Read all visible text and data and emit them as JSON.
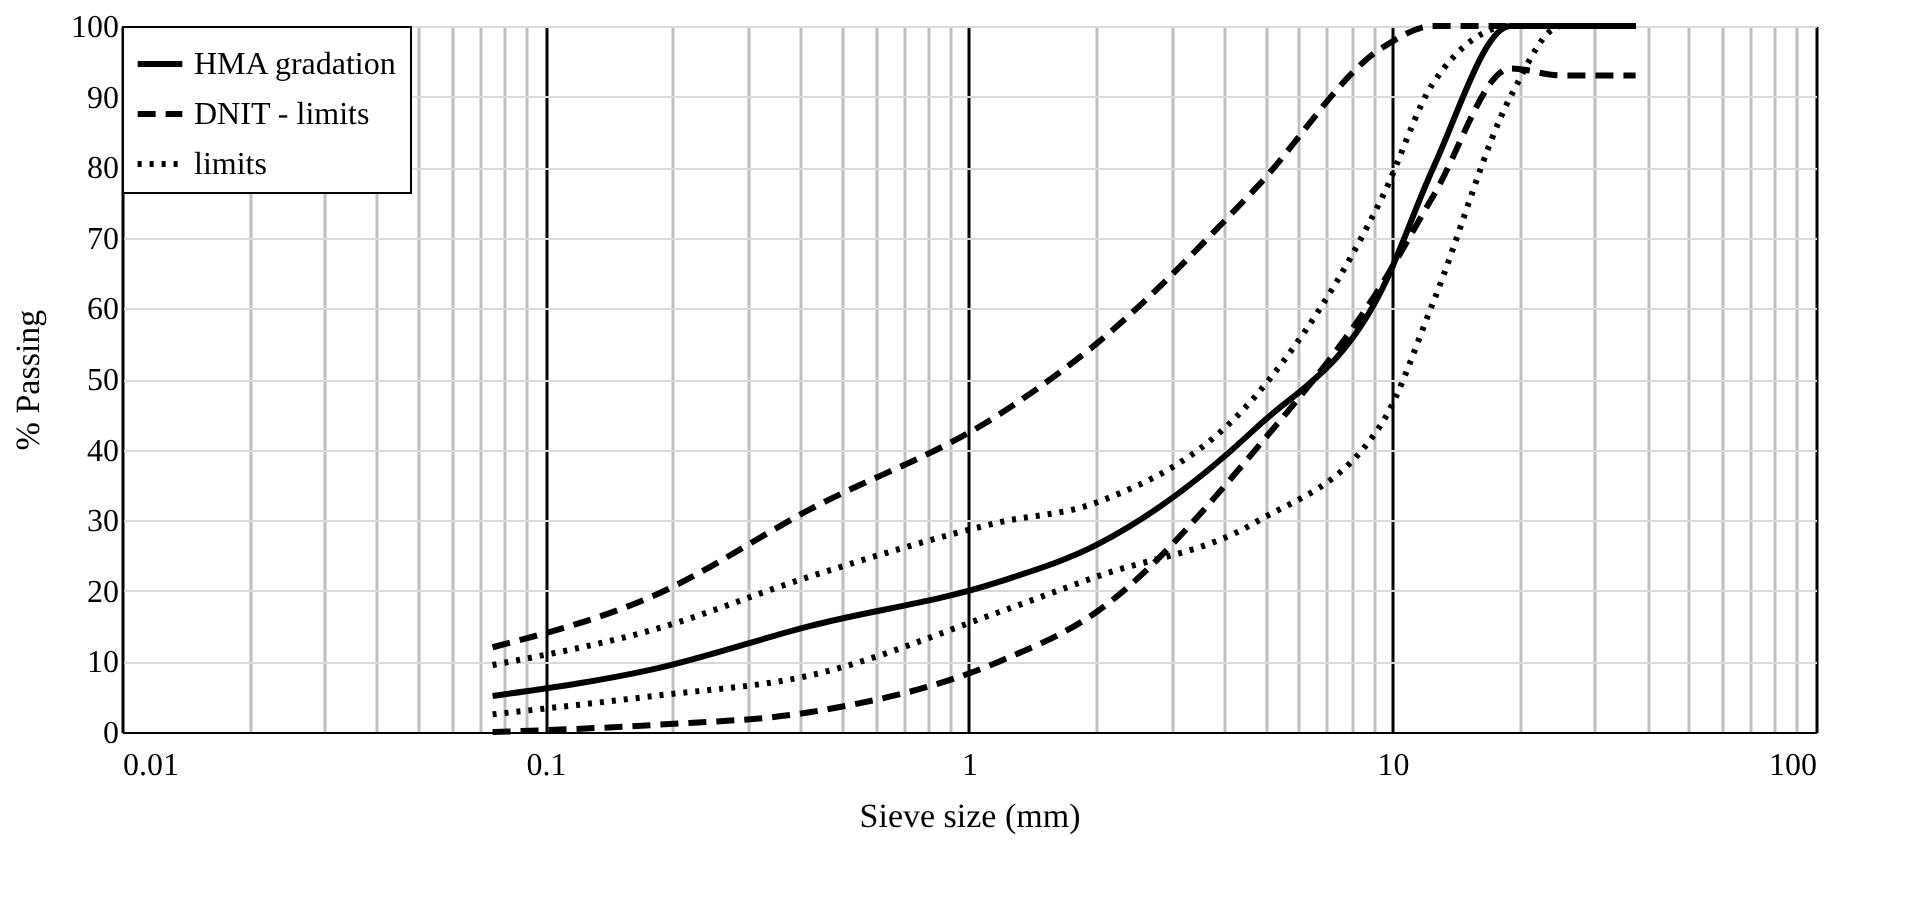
{
  "chart_data": {
    "type": "line",
    "xlabel": "Sieve size (mm)",
    "ylabel": "% Passing",
    "x": [
      0.075,
      0.18,
      0.42,
      1.18,
      2.0,
      4.75,
      9.5,
      12.5,
      19,
      25,
      37.5
    ],
    "series": [
      {
        "name": "HMA gradation",
        "color": "#000000",
        "line_style": "solid",
        "values": [
          5.1,
          8.9,
          15,
          21.3,
          26.5,
          43,
          63,
          80,
          100,
          100,
          100
        ]
      },
      {
        "name": "DNIT - limits",
        "color": "#000000",
        "line_style": "dashed",
        "values": [
          12,
          19.3,
          31.5,
          45,
          55,
          77,
          97,
          100,
          100,
          100,
          100
        ]
      },
      {
        "color": "#000000",
        "line_style": "dashed",
        "values": [
          0,
          1,
          2.8,
          10,
          17,
          40,
          63.7,
          76,
          94,
          93,
          93
        ]
      },
      {
        "name": "limits",
        "color": "#000000",
        "line_style": "dotted",
        "values": [
          9.5,
          14.5,
          22,
          29.7,
          32.5,
          47.6,
          76,
          92,
          100,
          100,
          100
        ]
      },
      {
        "color": "#000000",
        "line_style": "dotted",
        "values": [
          2.5,
          5.1,
          8,
          17,
          22,
          29.7,
          44,
          61,
          90,
          100,
          100
        ]
      }
    ],
    "log": "x",
    "xlim": [
      0.01,
      100
    ],
    "ylim": [
      0,
      100
    ],
    "xticks": [
      0.01,
      {
        "value": 0.02,
        "label": null
      },
      {
        "value": 0.03,
        "label": null
      },
      {
        "value": 0.04,
        "label": null
      },
      {
        "value": 0.05,
        "label": null
      },
      {
        "value": 0.06,
        "label": null
      },
      {
        "value": 0.07,
        "label": null
      },
      {
        "value": 0.08,
        "label": null
      },
      {
        "value": 0.09,
        "label": null
      },
      0.1,
      {
        "value": 0.2,
        "label": null
      },
      {
        "value": 0.3,
        "label": null
      },
      {
        "value": 0.4,
        "label": null
      },
      {
        "value": 0.5,
        "label": null
      },
      {
        "value": 0.6,
        "label": null
      },
      {
        "value": 0.7,
        "label": null
      },
      {
        "value": 0.8,
        "label": null
      },
      {
        "value": 0.9,
        "label": null
      },
      1,
      {
        "value": 2,
        "label": null
      },
      {
        "value": 3,
        "label": null
      },
      {
        "value": 4,
        "label": null
      },
      {
        "value": 5,
        "label": null
      },
      {
        "value": 6,
        "label": null
      },
      {
        "value": 7,
        "label": null
      },
      {
        "value": 8,
        "label": null
      },
      {
        "value": 9,
        "label": null
      },
      10,
      {
        "value": 20,
        "label": null
      },
      {
        "value": 30,
        "label": null
      },
      {
        "value": 40,
        "label": null
      },
      {
        "value": 50,
        "label": null
      },
      {
        "value": 60,
        "label": null
      },
      {
        "value": 70,
        "label": null
      },
      {
        "value": 80,
        "label": null
      },
      {
        "value": 90,
        "label": null
      },
      100
    ],
    "yticks": [
      0,
      10,
      20,
      30,
      40,
      50,
      60,
      70,
      80,
      90,
      100
    ],
    "grid": true,
    "legend": "top left",
    "marker": "none"
  }
}
